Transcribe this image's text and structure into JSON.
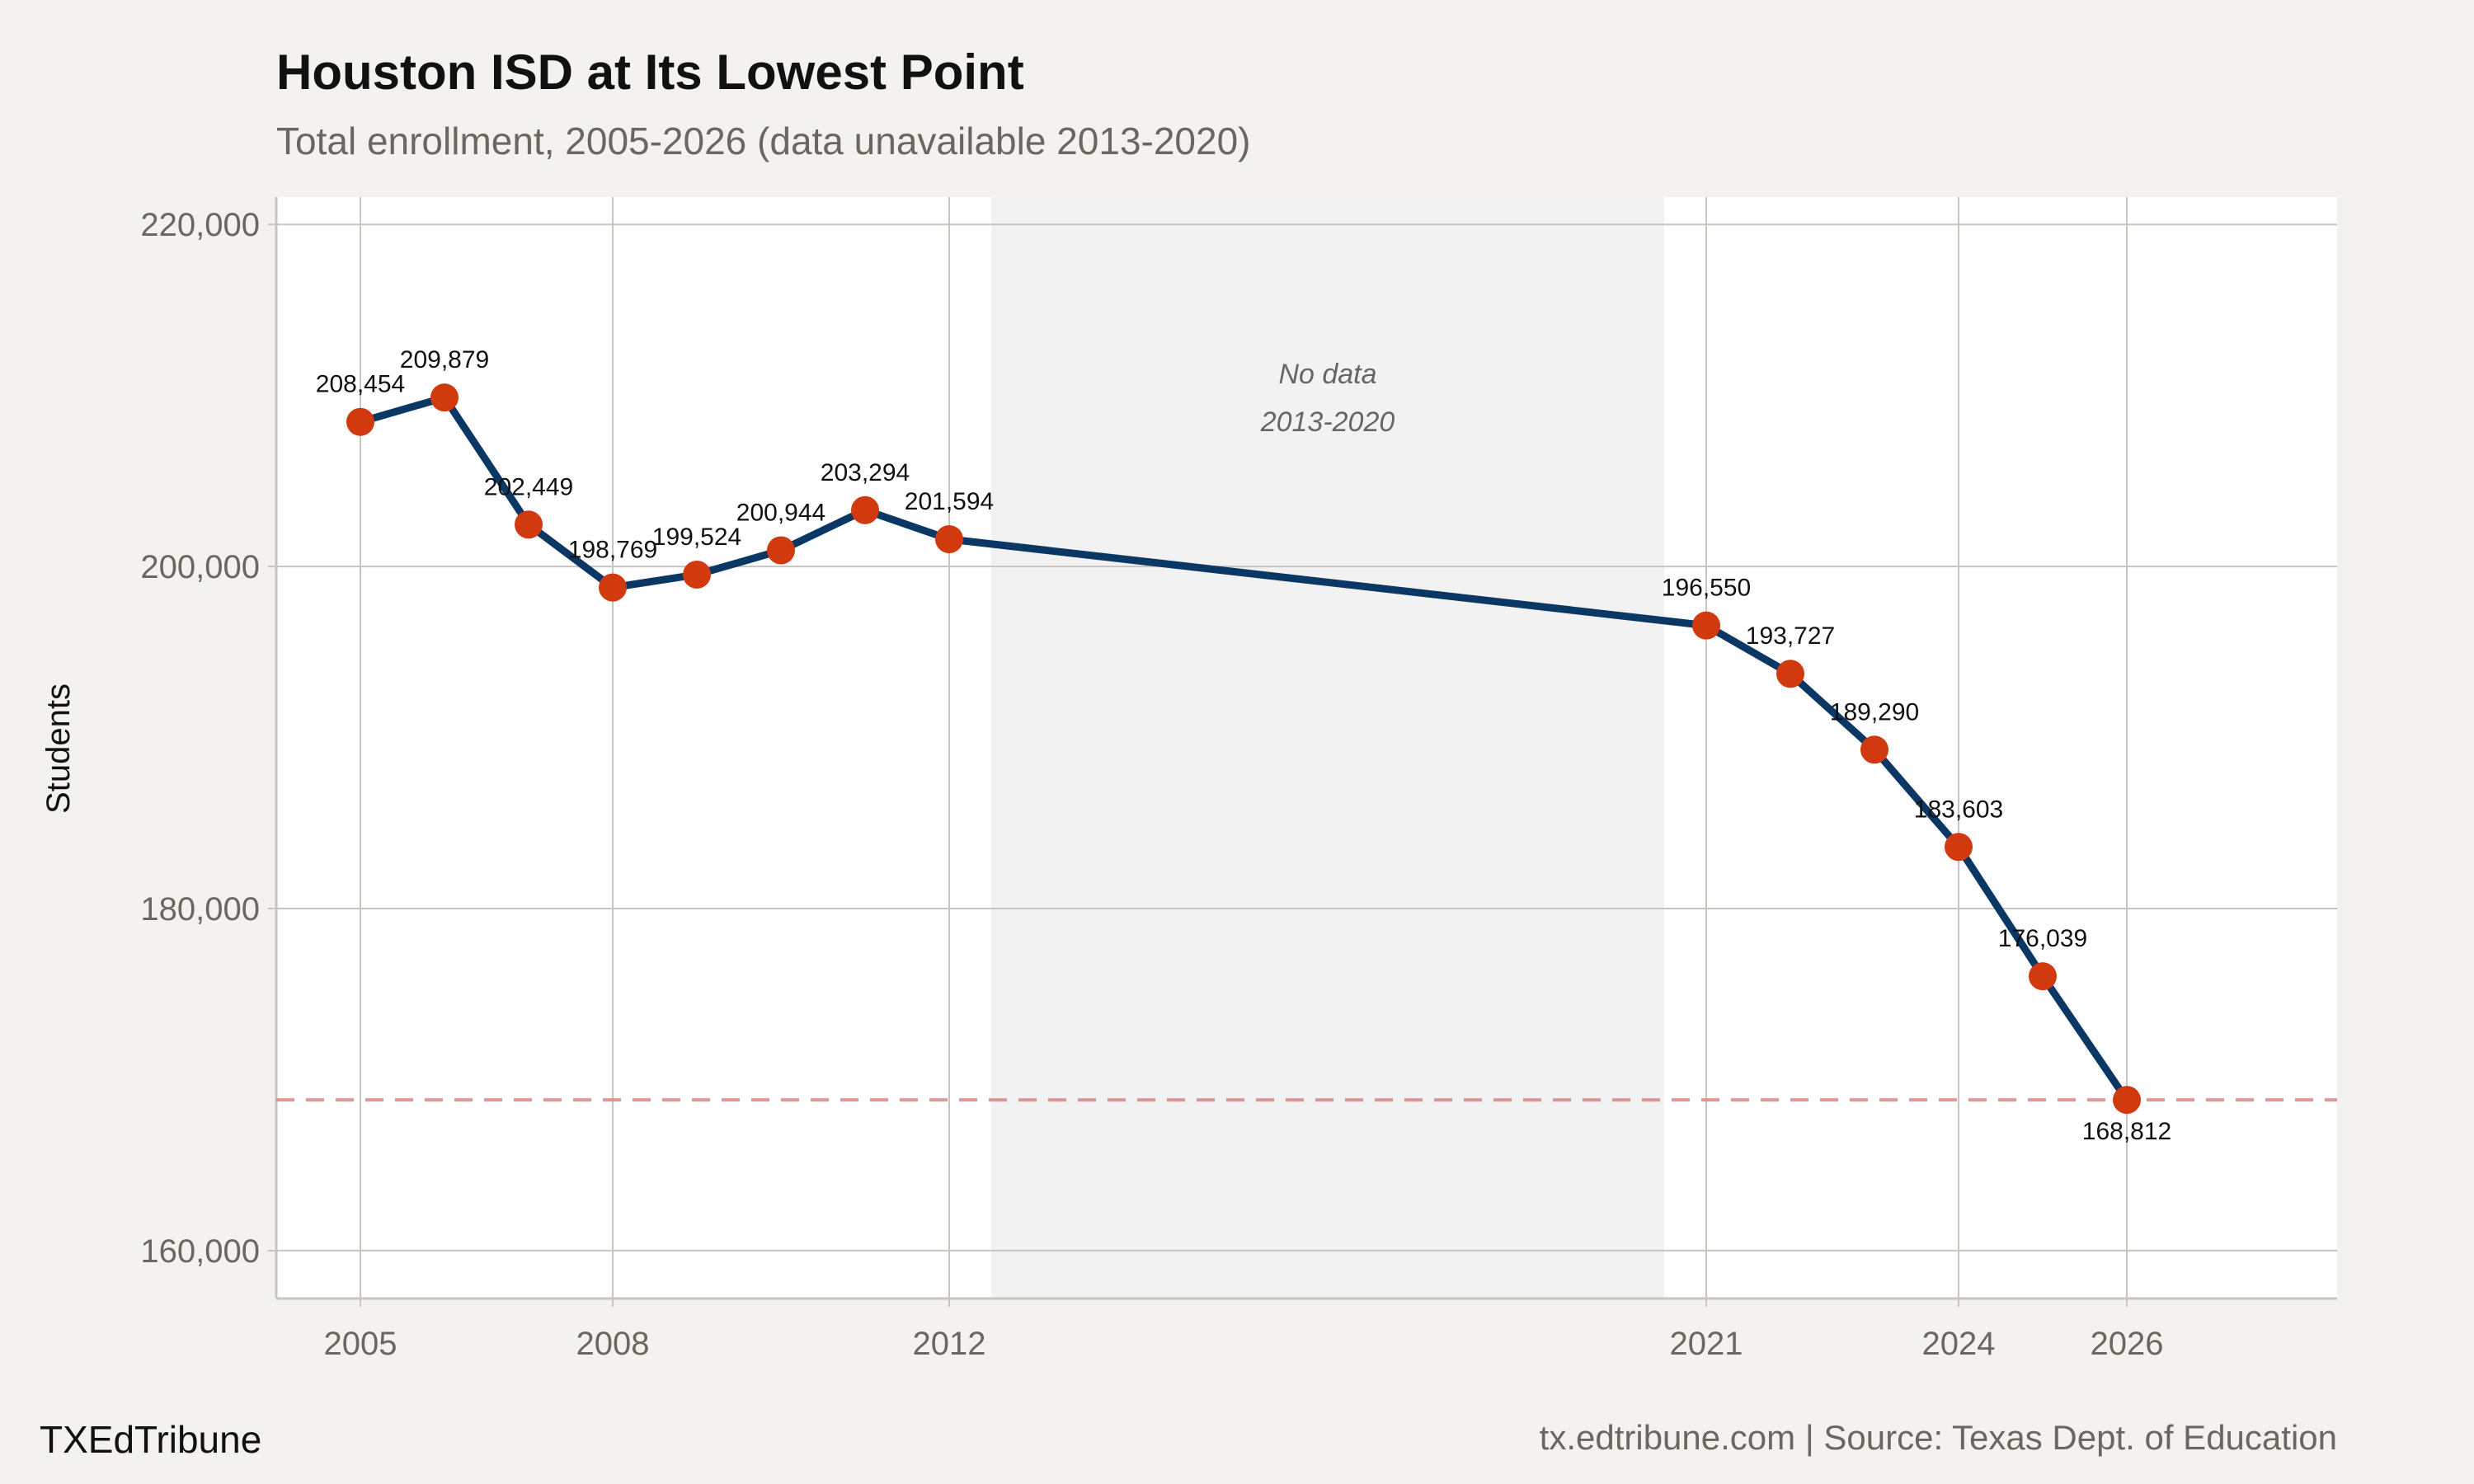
{
  "chart_data": {
    "type": "line",
    "title": "Houston ISD at Its Lowest Point",
    "subtitle": "Total enrollment, 2005-2026 (data unavailable 2013-2020)",
    "xlabel": "",
    "ylabel": "Students",
    "x": [
      2005,
      2006,
      2007,
      2008,
      2009,
      2010,
      2011,
      2012,
      2021,
      2022,
      2023,
      2024,
      2025,
      2026
    ],
    "values": [
      208454,
      209879,
      202449,
      198769,
      199524,
      200944,
      203294,
      201594,
      196550,
      193727,
      189290,
      183603,
      176039,
      168812
    ],
    "data_labels": [
      "208,454",
      "209,879",
      "202,449",
      "198,769",
      "199,524",
      "200,944",
      "203,294",
      "201,594",
      "196,550",
      "193,727",
      "189,290",
      "183,603",
      "176,039",
      "168,812"
    ],
    "xticks": [
      2005,
      2008,
      2012,
      2021,
      2024,
      2026
    ],
    "xtick_labels": [
      "2005",
      "2008",
      "2012",
      "2021",
      "2024",
      "2026"
    ],
    "yticks": [
      160000,
      180000,
      200000,
      220000
    ],
    "ytick_labels": [
      "160,000",
      "180,000",
      "200,000",
      "220,000"
    ],
    "xlim": [
      2004,
      2028.5
    ],
    "ylim": [
      157200,
      221600
    ],
    "grid": true,
    "shaded_region": {
      "x": [
        2012.5,
        2020.5
      ],
      "label_lines": [
        "No data",
        "2013-2020"
      ]
    },
    "reference_line": {
      "y": 168812,
      "style": "dashed"
    },
    "colors": {
      "background": "#f4f2ee",
      "panel": "#ffffff",
      "grid": "#c9c5bd",
      "shade": "#f2f2f2",
      "line": "#0a3764",
      "points": "#d13a0e",
      "reference_line": "#e09494"
    }
  },
  "footer": {
    "brand": "TXEdTribune",
    "caption": "tx.edtribune.com | Source: Texas Dept. of Education"
  }
}
